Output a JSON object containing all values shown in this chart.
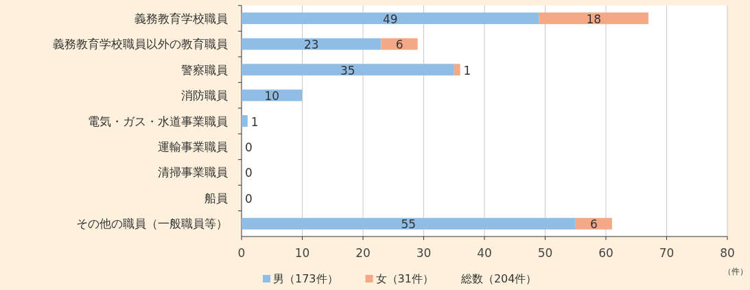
{
  "chart_data": {
    "type": "bar",
    "orientation": "horizontal",
    "stacked": true,
    "categories": [
      "義務教育学校職員",
      "義務教育学校職員以外の教育職員",
      "警察職員",
      "消防職員",
      "電気・ガス・水道事業職員",
      "運輸事業職員",
      "清掃事業職員",
      "船員",
      "その他の職員（一般職員等）"
    ],
    "series": [
      {
        "name": "男（173件）",
        "color": "#8fbde6",
        "values": [
          49,
          23,
          35,
          10,
          1,
          0,
          0,
          0,
          55
        ],
        "value_labels": [
          "49",
          "23",
          "35",
          "10",
          "1",
          "0",
          "0",
          "0",
          "55"
        ]
      },
      {
        "name": "女（31件）",
        "color": "#f4a886",
        "values": [
          18,
          6,
          1,
          0,
          0,
          0,
          0,
          0,
          6
        ],
        "value_labels": [
          "18",
          "6",
          "1",
          null,
          null,
          null,
          null,
          null,
          "6"
        ]
      }
    ],
    "xlim": [
      0,
      80
    ],
    "xticks": [
      0,
      10,
      20,
      30,
      40,
      50,
      60,
      70,
      80
    ],
    "xlabel": "（件）",
    "grid": "x",
    "legend": "bottom",
    "annotations": [
      "総数（204件）"
    ]
  }
}
